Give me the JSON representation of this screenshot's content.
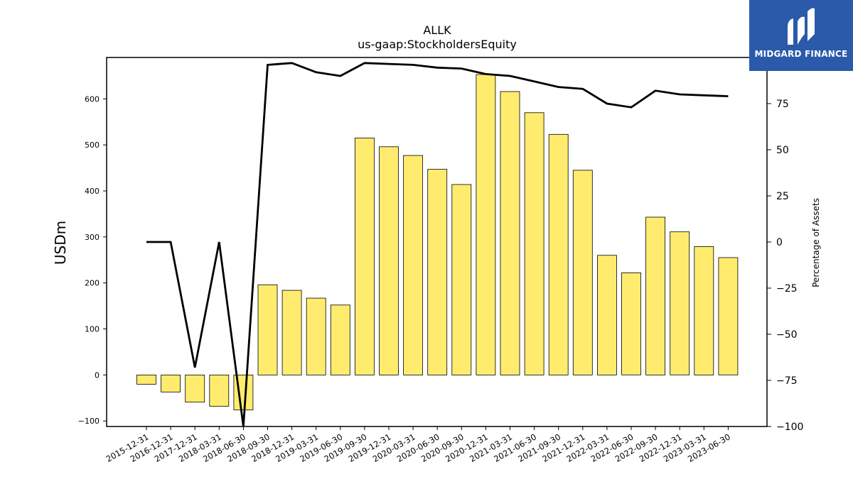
{
  "chart_data": {
    "type": "bar",
    "title": "ALLK",
    "subtitle": "us-gaap:StockholdersEquity",
    "ylabel": "USDm",
    "y2label": "Percentage of Assets",
    "ylim": [
      -112,
      690
    ],
    "y2lim": [
      -100,
      100
    ],
    "yticks": [
      -100,
      0,
      100,
      200,
      300,
      400,
      500,
      600
    ],
    "y2ticks": [
      -100,
      -75,
      -50,
      -25,
      0,
      25,
      50,
      75,
      100
    ],
    "grid": false,
    "categories": [
      "2015-12-31",
      "2016-12-31",
      "2017-12-31",
      "2018-03-31",
      "2018-06-30",
      "2018-09-30",
      "2018-12-31",
      "2019-03-31",
      "2019-06-30",
      "2019-09-30",
      "2019-12-31",
      "2020-03-31",
      "2020-06-30",
      "2020-09-30",
      "2020-12-31",
      "2021-03-31",
      "2021-06-30",
      "2021-09-30",
      "2021-12-31",
      "2022-03-31",
      "2022-06-30",
      "2022-09-30",
      "2022-12-31",
      "2023-03-31",
      "2023-06-30"
    ],
    "series": [
      {
        "type": "bar",
        "axis": "left",
        "color": "#ffec6e",
        "values": [
          -20,
          -37,
          -59,
          -68,
          -76,
          196,
          184,
          167,
          152,
          515,
          496,
          477,
          447,
          414,
          653,
          616,
          570,
          523,
          445,
          260,
          222,
          343,
          311,
          279,
          255
        ]
      },
      {
        "type": "line",
        "axis": "right",
        "color": "#000000",
        "values": [
          0,
          0,
          -68,
          0,
          -100,
          96,
          97,
          92,
          90,
          97,
          96.5,
          96,
          94.5,
          94,
          91,
          90,
          87,
          84,
          83,
          75,
          73,
          82,
          80,
          79.5,
          79
        ]
      }
    ]
  },
  "logo": {
    "text": "MIDGARD FINANCE",
    "color": "#2b5aab"
  }
}
